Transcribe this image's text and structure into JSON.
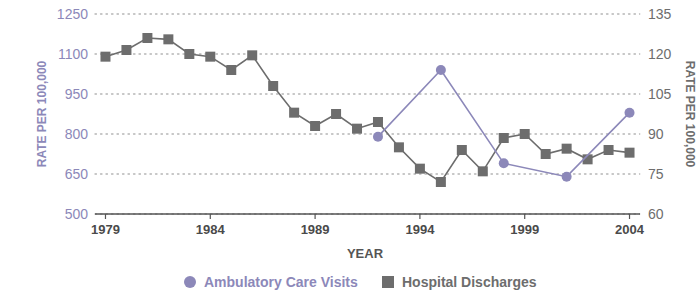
{
  "chart_data": {
    "type": "line",
    "x_label": "YEAR",
    "y_label": "RATE PER 100,000",
    "y2_label": "RATE PER 100,000",
    "xlim": [
      1978.5,
      2004.5
    ],
    "xticks": [
      1979,
      1984,
      1989,
      1994,
      1999,
      2004
    ],
    "ylim": [
      500,
      1250
    ],
    "yticks": [
      500,
      650,
      800,
      950,
      1100,
      1250
    ],
    "y2lim": [
      60,
      135
    ],
    "y2ticks": [
      60,
      75,
      90,
      105,
      120,
      135
    ],
    "grid": true,
    "legend": "bottom",
    "series": [
      {
        "name": "Ambulatory Care Visits",
        "color": "#8c88b9",
        "marker": "circle",
        "x": [
          1992,
          1995,
          1998,
          2001,
          2004
        ],
        "values": [
          790,
          1040,
          690,
          640,
          880
        ]
      },
      {
        "name": "Hospital Discharges",
        "color": "#6d6d6d",
        "marker": "square",
        "axis": "y2",
        "x": [
          1979,
          1980,
          1981,
          1982,
          1983,
          1984,
          1985,
          1986,
          1987,
          1988,
          1989,
          1990,
          1991,
          1992,
          1993,
          1994,
          1995,
          1996,
          1997,
          1998,
          1999,
          2000,
          2001,
          2002,
          2003,
          2004
        ],
        "values": [
          119,
          121.5,
          126,
          125.5,
          120,
          119,
          114,
          119.5,
          108,
          98,
          93,
          97.5,
          92,
          94.5,
          85,
          77,
          72,
          84,
          76,
          88.5,
          90,
          82.5,
          84.5,
          80.5,
          84,
          83
        ]
      }
    ]
  }
}
